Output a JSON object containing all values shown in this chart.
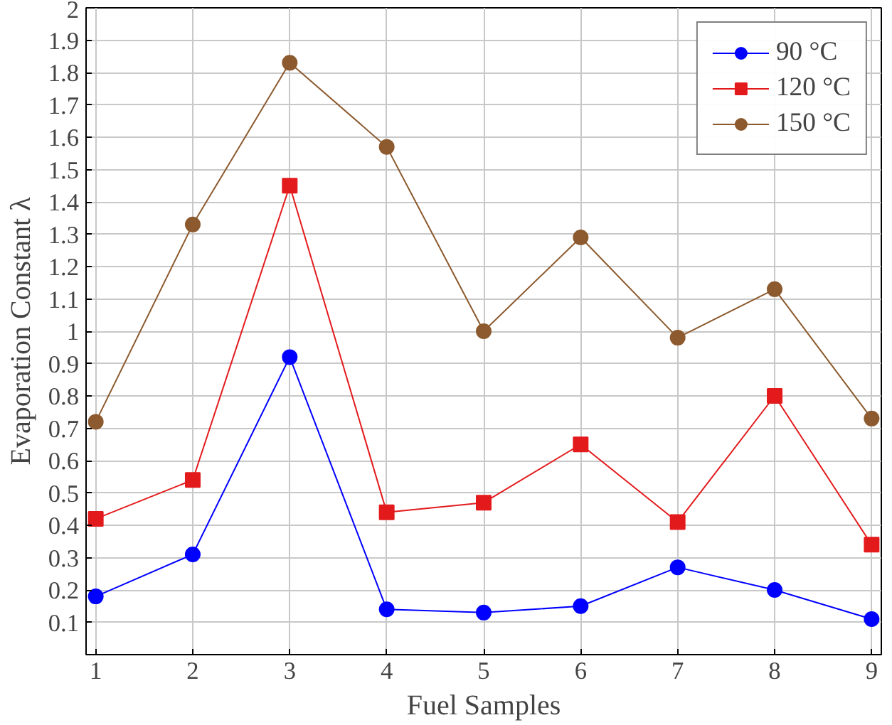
{
  "chart_data": {
    "type": "line",
    "xlabel": "Fuel Samples",
    "ylabel": "Evaporation Constant λ",
    "x": [
      1,
      2,
      3,
      4,
      5,
      6,
      7,
      8,
      9
    ],
    "xlim": [
      0.9,
      9.1
    ],
    "xticks": [
      1,
      2,
      3,
      4,
      5,
      6,
      7,
      8,
      9
    ],
    "ylim": [
      0,
      2
    ],
    "yticks": [
      0.1,
      0.2,
      0.3,
      0.4,
      0.5,
      0.6,
      0.7,
      0.8,
      0.9,
      1,
      1.1,
      1.2,
      1.3,
      1.4,
      1.5,
      1.6,
      1.7,
      1.8,
      1.9,
      2
    ],
    "grid": true,
    "legend": "top right",
    "line_style": "solid",
    "series": [
      {
        "name": "90 °C",
        "color": "#0000ff",
        "marker": "circle",
        "values": [
          0.18,
          0.31,
          0.92,
          0.14,
          0.13,
          0.15,
          0.27,
          0.2,
          0.11
        ]
      },
      {
        "name": "120 °C",
        "color": "#e31a1c",
        "marker": "square",
        "values": [
          0.42,
          0.54,
          1.45,
          0.44,
          0.47,
          0.65,
          0.41,
          0.8,
          0.34
        ]
      },
      {
        "name": "150 °C",
        "color": "#8c5a2e",
        "marker": "circle",
        "values": [
          0.72,
          1.33,
          1.83,
          1.57,
          1.0,
          1.29,
          0.98,
          1.13,
          0.73
        ]
      }
    ]
  }
}
